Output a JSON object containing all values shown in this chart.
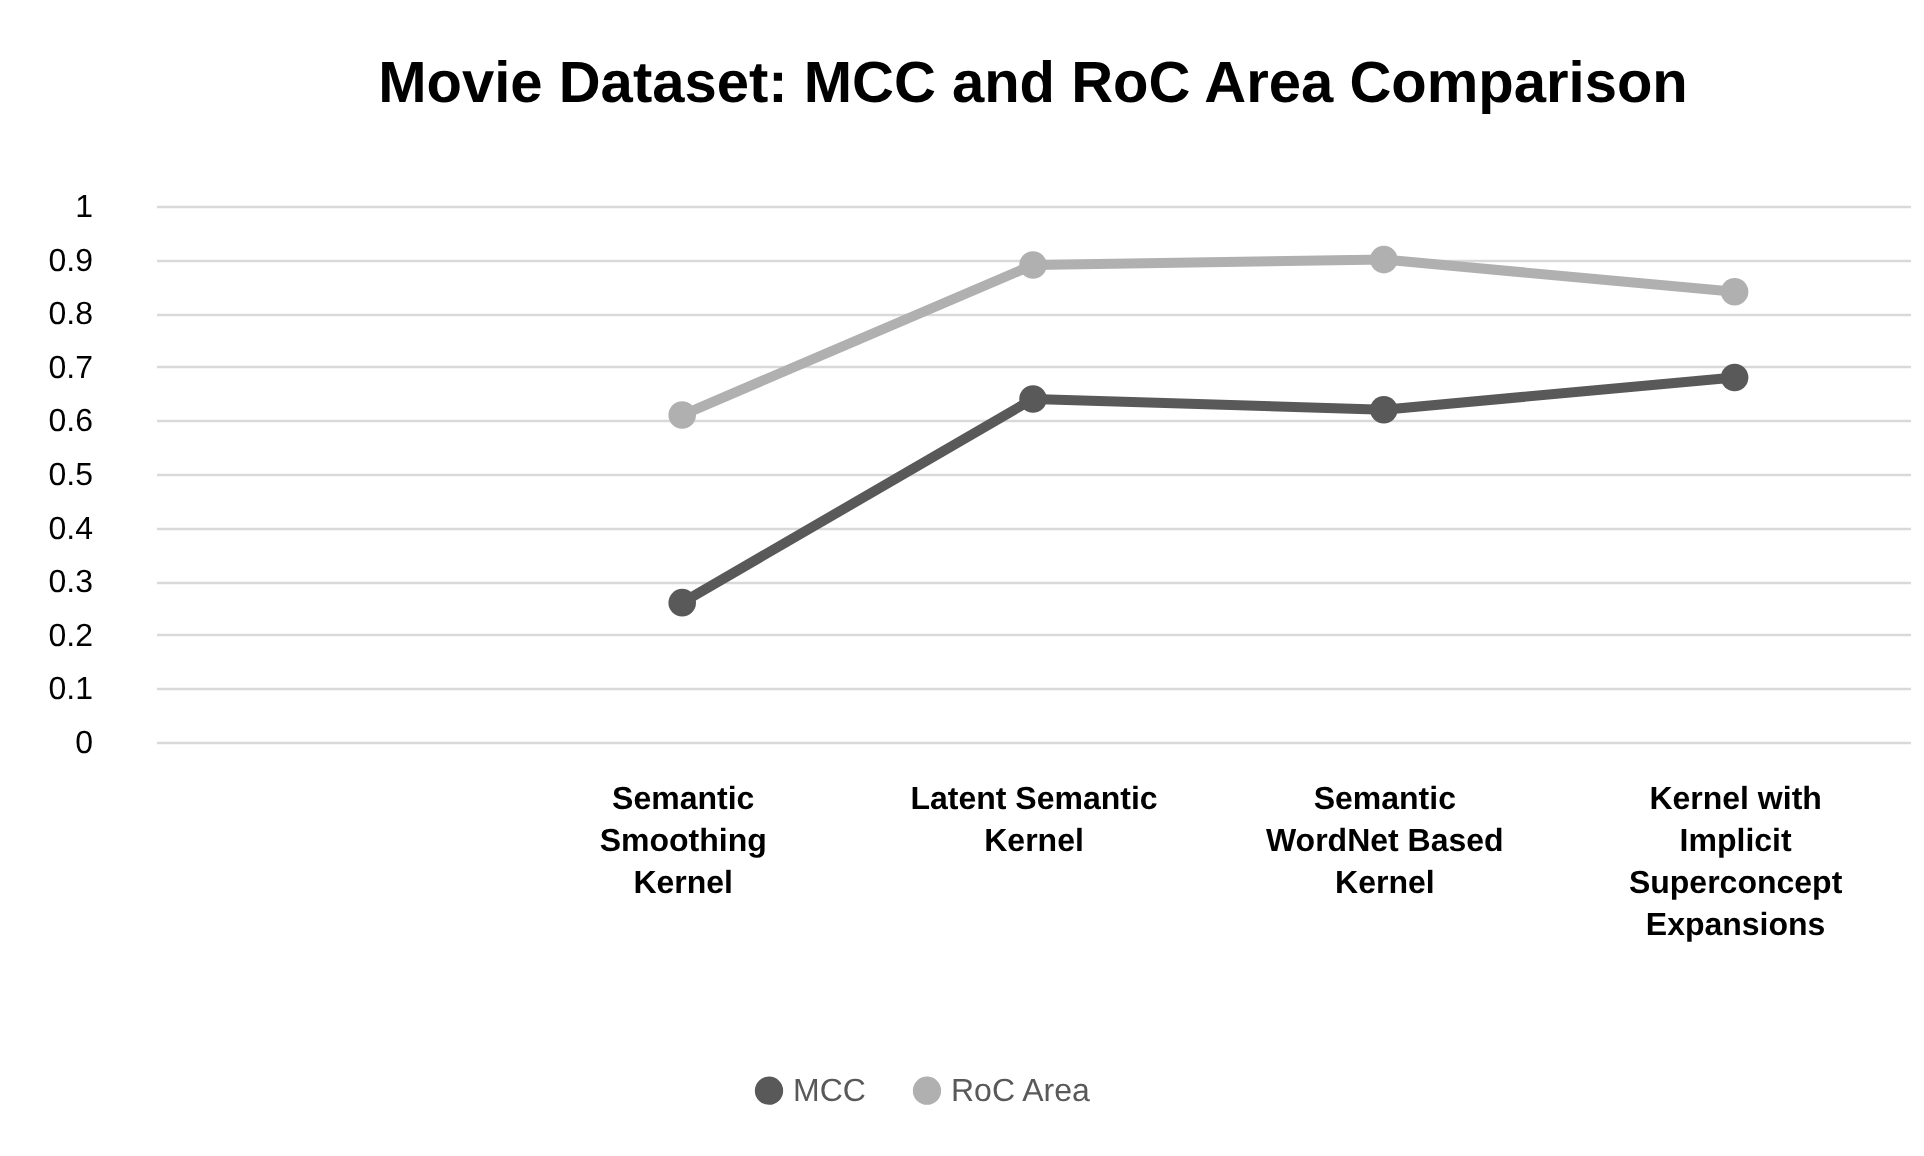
{
  "chart_data": {
    "type": "line",
    "title": "Movie Dataset: MCC and RoC Area Comparison",
    "categories": [
      null,
      "Semantic Smoothing Kernel",
      "Latent Semantic Kernel",
      "Semantic WordNet Based Kernel",
      "Kernel with Implicit Superconcept Expansions"
    ],
    "series": [
      {
        "name": "MCC",
        "color": "#595959",
        "values": [
          null,
          0.26,
          0.64,
          0.62,
          0.68
        ]
      },
      {
        "name": "RoC Area",
        "color": "#b0b0b0",
        "values": [
          null,
          0.61,
          0.89,
          0.9,
          0.84
        ]
      }
    ],
    "ylim": [
      0,
      1
    ],
    "yticks": [
      0,
      0.1,
      0.2,
      0.3,
      0.4,
      0.5,
      0.6,
      0.7,
      0.8,
      0.9,
      1
    ],
    "grid": "y",
    "legend": "bottom",
    "marker": "circle",
    "line_style": "solid"
  }
}
